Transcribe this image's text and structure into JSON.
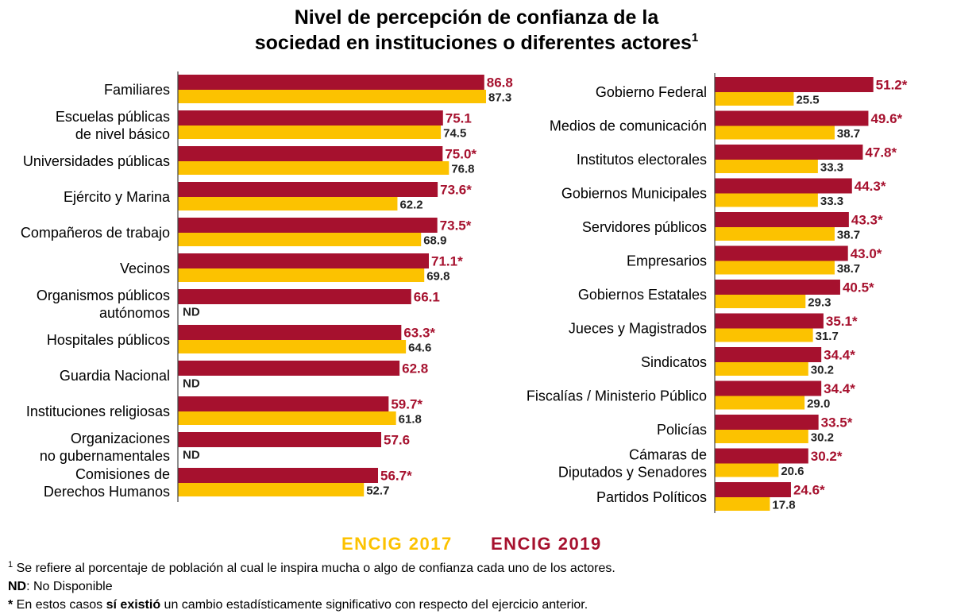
{
  "title": [
    "Nivel de percepción de confianza de la",
    "sociedad en instituciones o diferentes actores"
  ],
  "title_note": "1",
  "chart_data": [
    {
      "type": "hbar",
      "categories": [
        "Familiares",
        "Escuelas públicas\nde nivel básico",
        "Universidades públicas",
        "Ejército y Marina",
        "Compañeros de trabajo",
        "Vecinos",
        "Organismos públicos\nautónomos",
        "Hospitales públicos",
        "Guardia Nacional",
        "Instituciones religiosas",
        "Organizaciones\nno gubernamentales",
        "Comisiones de\nDerechos Humanos"
      ],
      "series": [
        {
          "name": "ENCIG 2019",
          "color": "#a6112e",
          "values": [
            86.8,
            75.1,
            75.0,
            73.6,
            73.5,
            71.1,
            66.1,
            63.3,
            62.8,
            59.7,
            57.6,
            56.7
          ],
          "value_labels": [
            "86.8",
            "75.1",
            "75.0*",
            "73.6*",
            "73.5*",
            "71.1*",
            "66.1",
            "63.3*",
            "62.8",
            "59.7*",
            "57.6",
            "56.7*"
          ]
        },
        {
          "name": "ENCIG 2017",
          "color": "#fcc200",
          "values": [
            87.3,
            74.5,
            76.8,
            62.2,
            68.9,
            69.8,
            null,
            64.6,
            null,
            61.8,
            null,
            52.7
          ],
          "value_labels": [
            "87.3",
            "74.5",
            "76.8",
            "62.2",
            "68.9",
            "69.8",
            "ND",
            "64.6",
            "ND",
            "61.8",
            "ND",
            "52.7"
          ]
        }
      ],
      "xlim": [
        0,
        90
      ]
    },
    {
      "type": "hbar",
      "categories": [
        "Gobierno Federal",
        "Medios de comunicación",
        "Institutos electorales",
        "Gobiernos Municipales",
        "Servidores públicos",
        "Empresarios",
        "Gobiernos Estatales",
        "Jueces y Magistrados",
        "Sindicatos",
        "Fiscalías / Ministerio Público",
        "Policías",
        "Cámaras de\nDiputados y Senadores",
        "Partidos Políticos"
      ],
      "series": [
        {
          "name": "ENCIG 2019",
          "color": "#a6112e",
          "values": [
            51.2,
            49.6,
            47.8,
            44.3,
            43.3,
            43.0,
            40.5,
            35.1,
            34.4,
            34.4,
            33.5,
            30.2,
            24.6
          ],
          "value_labels": [
            "51.2*",
            "49.6*",
            "47.8*",
            "44.3*",
            "43.3*",
            "43.0*",
            "40.5*",
            "35.1*",
            "34.4*",
            "34.4*",
            "33.5*",
            "30.2*",
            "24.6*"
          ]
        },
        {
          "name": "ENCIG 2017",
          "color": "#fcc200",
          "values": [
            25.5,
            38.7,
            33.3,
            33.3,
            38.7,
            38.7,
            29.3,
            31.7,
            30.2,
            29.0,
            30.2,
            20.6,
            17.8
          ],
          "value_labels": [
            "25.5",
            "38.7",
            "33.3",
            "33.3",
            "38.7",
            "38.7",
            "29.3",
            "31.7",
            "30.2",
            "29.0",
            "30.2",
            "20.6",
            "17.8"
          ]
        }
      ],
      "xlim": [
        0,
        60
      ]
    }
  ],
  "footnotes": [
    [
      {
        "text": "1",
        "sup": true
      },
      {
        "text": " Se refiere al porcentaje de población al cual le inspira mucha o algo de confianza cada uno de los actores."
      }
    ],
    [
      {
        "text": "ND",
        "bold": true
      },
      {
        "text": ": No Disponible"
      }
    ],
    [
      {
        "text": "*",
        "bold": true
      },
      {
        "text": " En estos casos "
      },
      {
        "text": "sí existió",
        "bold": true
      },
      {
        "text": " un cambio estadísticamente significativo con respecto del ejercicio anterior."
      }
    ]
  ]
}
